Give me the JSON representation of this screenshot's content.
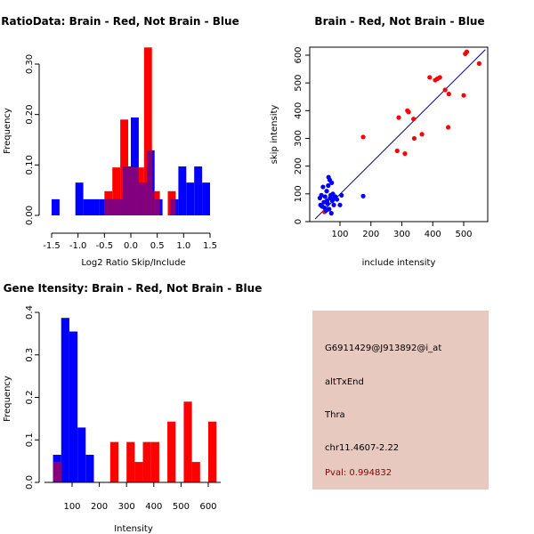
{
  "colors": {
    "red": "#ff0000",
    "blue": "#0000ff",
    "overlap": "#800080",
    "line": "#00008b",
    "panel_bg": "#e8c9c0"
  },
  "chart_data": [
    {
      "type": "bar",
      "subtype": "overlaid-histogram",
      "title": "RatioData: Brain - Red, Not Brain - Blue",
      "xlabel": "Log2 Ratio Skip/Include",
      "ylabel": "Frequency",
      "xlim": [
        -1.5,
        1.6
      ],
      "ylim": [
        0,
        0.34
      ],
      "xticks": [
        -1.5,
        -1.0,
        -0.5,
        0.0,
        0.5,
        1.0,
        1.5
      ],
      "xtick_labels": [
        "-1.5",
        "-1.0",
        "-0.5",
        "0.0",
        "0.5",
        "1.0",
        "1.5"
      ],
      "yticks": [
        0.0,
        0.1,
        0.2,
        0.3
      ],
      "ytick_labels": [
        "0.00",
        "0.10",
        "0.20",
        "0.30"
      ],
      "bin_width": 0.15,
      "series": [
        {
          "name": "Not Brain",
          "color": "blue",
          "bins": [
            [
              -1.5,
              0.032
            ],
            [
              -1.35,
              0
            ],
            [
              -1.2,
              0
            ],
            [
              -1.05,
              0.065
            ],
            [
              -0.9,
              0.032
            ],
            [
              -0.75,
              0.032
            ],
            [
              -0.6,
              0.032
            ],
            [
              -0.45,
              0.032
            ],
            [
              -0.3,
              0.032
            ],
            [
              -0.15,
              0.097
            ],
            [
              0.0,
              0.194
            ],
            [
              0.15,
              0.065
            ],
            [
              0.3,
              0.129
            ],
            [
              0.45,
              0.032
            ],
            [
              0.6,
              0
            ],
            [
              0.75,
              0.032
            ],
            [
              0.9,
              0.097
            ],
            [
              1.05,
              0.065
            ],
            [
              1.2,
              0.097
            ],
            [
              1.35,
              0.065
            ]
          ]
        },
        {
          "name": "Brain",
          "color": "red",
          "bins": [
            [
              -0.5,
              0.048
            ],
            [
              -0.35,
              0.095
            ],
            [
              -0.2,
              0.19
            ],
            [
              -0.05,
              0.095
            ],
            [
              0.1,
              0.095
            ],
            [
              0.25,
              0.333
            ],
            [
              0.4,
              0.048
            ],
            [
              0.55,
              0.0
            ],
            [
              0.7,
              0.048
            ]
          ]
        }
      ]
    },
    {
      "type": "scatter",
      "title": "Brain - Red, Not Brain - Blue",
      "xlabel": "include intensity",
      "ylabel": "skip intensity",
      "xlim": [
        20,
        570
      ],
      "ylim": [
        0,
        640
      ],
      "xticks": [
        100,
        200,
        300,
        400,
        500
      ],
      "yticks": [
        0,
        100,
        200,
        300,
        400,
        500,
        600
      ],
      "fit_line": [
        [
          20,
          10
        ],
        [
          570,
          620
        ]
      ],
      "series": [
        {
          "name": "Brain",
          "color": "red",
          "points": [
            [
              50,
              35
            ],
            [
              175,
              305
            ],
            [
              285,
              255
            ],
            [
              290,
              375
            ],
            [
              310,
              245
            ],
            [
              318,
              400
            ],
            [
              322,
              395
            ],
            [
              338,
              370
            ],
            [
              340,
              300
            ],
            [
              365,
              315
            ],
            [
              390,
              520
            ],
            [
              408,
              510
            ],
            [
              415,
              515
            ],
            [
              423,
              520
            ],
            [
              440,
              475
            ],
            [
              450,
              340
            ],
            [
              452,
              460
            ],
            [
              500,
              455
            ],
            [
              505,
              605
            ],
            [
              510,
              612
            ],
            [
              550,
              570
            ]
          ]
        },
        {
          "name": "Not Brain",
          "color": "blue",
          "points": [
            [
              35,
              85
            ],
            [
              37,
              60
            ],
            [
              40,
              95
            ],
            [
              42,
              55
            ],
            [
              45,
              125
            ],
            [
              48,
              70
            ],
            [
              50,
              50
            ],
            [
              52,
              90
            ],
            [
              55,
              40
            ],
            [
              57,
              110
            ],
            [
              58,
              75
            ],
            [
              60,
              65
            ],
            [
              62,
              130
            ],
            [
              63,
              160
            ],
            [
              65,
              45
            ],
            [
              67,
              150
            ],
            [
              68,
              85
            ],
            [
              70,
              95
            ],
            [
              72,
              30
            ],
            [
              73,
              140
            ],
            [
              75,
              75
            ],
            [
              77,
              100
            ],
            [
              80,
              60
            ],
            [
              82,
              85
            ],
            [
              85,
              90
            ],
            [
              90,
              80
            ],
            [
              100,
              60
            ],
            [
              105,
              95
            ],
            [
              175,
              92
            ]
          ]
        }
      ]
    },
    {
      "type": "bar",
      "subtype": "overlaid-histogram",
      "title": "Gene Itensity: Brain - Red, Not Brain - Blue",
      "xlabel": "Intensity",
      "ylabel": "Frequency",
      "xlim": [
        20,
        620
      ],
      "ylim": [
        0,
        0.4
      ],
      "xticks": [
        100,
        200,
        300,
        400,
        500,
        600
      ],
      "yticks": [
        0.0,
        0.1,
        0.2,
        0.3,
        0.4
      ],
      "ytick_labels": [
        "0.0",
        "0.1",
        "0.2",
        "0.3",
        "0.4"
      ],
      "series": [
        {
          "name": "Not Brain",
          "color": "blue",
          "bins": [
            [
              30,
              60,
              0.065
            ],
            [
              60,
              90,
              0.387
            ],
            [
              90,
              120,
              0.355
            ],
            [
              120,
              150,
              0.129
            ],
            [
              150,
              180,
              0.065
            ]
          ]
        },
        {
          "name": "Brain",
          "color": "red",
          "bins": [
            [
              30,
              60,
              0.048
            ],
            [
              240,
              270,
              0.095
            ],
            [
              300,
              330,
              0.095
            ],
            [
              330,
              360,
              0.048
            ],
            [
              360,
              390,
              0.095
            ],
            [
              390,
              420,
              0.095
            ],
            [
              450,
              480,
              0.143
            ],
            [
              510,
              540,
              0.19
            ],
            [
              540,
              570,
              0.048
            ],
            [
              600,
              630,
              0.143
            ]
          ]
        }
      ]
    }
  ],
  "info": {
    "probe": "G6911429@J913892@i_at",
    "event": "altTxEnd",
    "gene": "Thra",
    "location": "chr11.4607-2.22",
    "pval": "Pval: 0.994832"
  }
}
